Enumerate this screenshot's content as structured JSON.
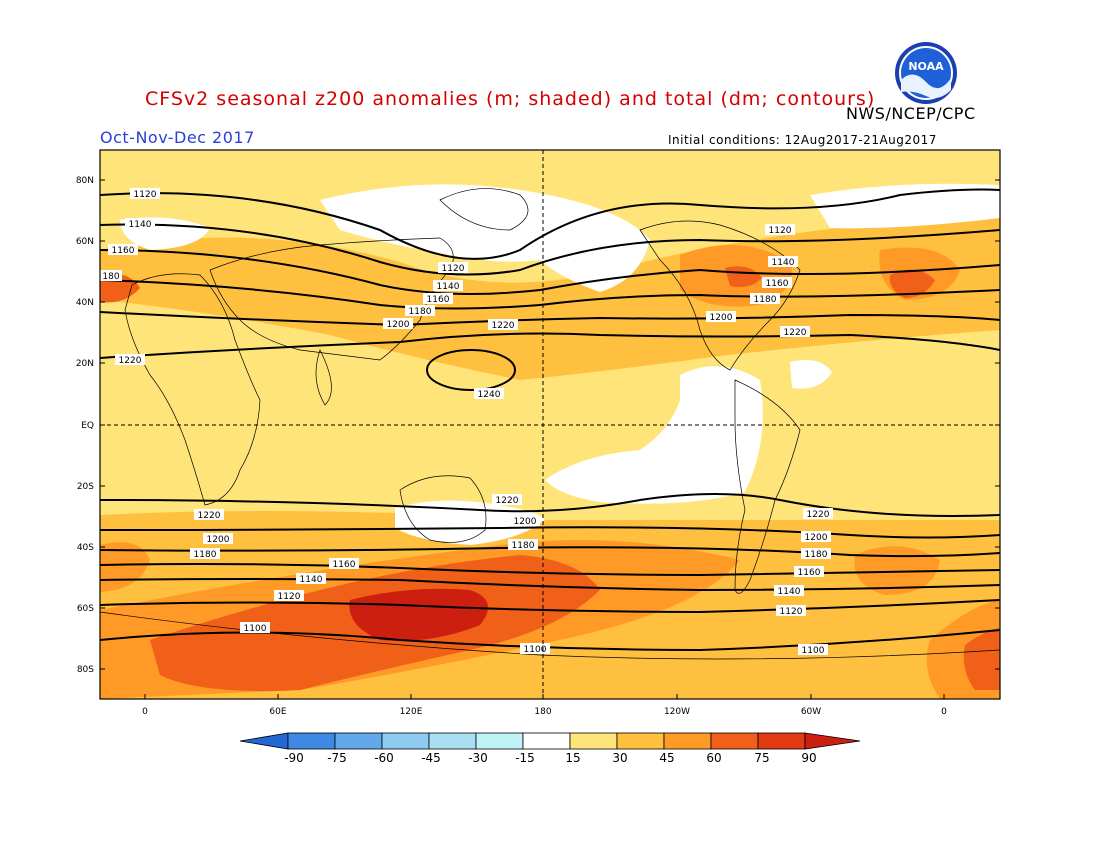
{
  "header": {
    "title": "CFSv2 seasonal z200 anomalies (m; shaded) and total (dm; contours)",
    "agency": "NWS/NCEP/CPC",
    "period": "Oct-Nov-Dec 2017",
    "initial_conditions": "Initial conditions: 12Aug2017-21Aug2017",
    "logo_text": "NOAA"
  },
  "colors": {
    "c15_30": "#ffe47a",
    "c30_45": "#ffc040",
    "c45_60": "#ff9a26",
    "c60_75": "#f06018",
    "c75_90": "#cc1f0f",
    "neutral": "#ffffff",
    "neg15": "#bff3f5",
    "neg30": "#8ecbf0",
    "neg45": "#62a9ec",
    "neg60": "#3d89e3",
    "neg75": "#2367d4",
    "neg90": "#1449b4"
  },
  "axes": {
    "lat_labels": [
      "80N",
      "60N",
      "40N",
      "20N",
      "EQ",
      "20S",
      "40S",
      "60S",
      "80S"
    ],
    "lon_labels": [
      "0",
      "60E",
      "120E",
      "180",
      "120W",
      "60W",
      "0"
    ]
  },
  "contours": [
    {
      "label": "1120"
    },
    {
      "label": "1140"
    },
    {
      "label": "1160"
    },
    {
      "label": "1180"
    },
    {
      "label": "1200"
    },
    {
      "label": "1220"
    },
    {
      "label": "1240"
    },
    {
      "label": "1100"
    }
  ],
  "colorbar": {
    "ticks": [
      "-90",
      "-75",
      "-60",
      "-45",
      "-30",
      "-15",
      "15",
      "30",
      "45",
      "60",
      "75",
      "90"
    ]
  }
}
